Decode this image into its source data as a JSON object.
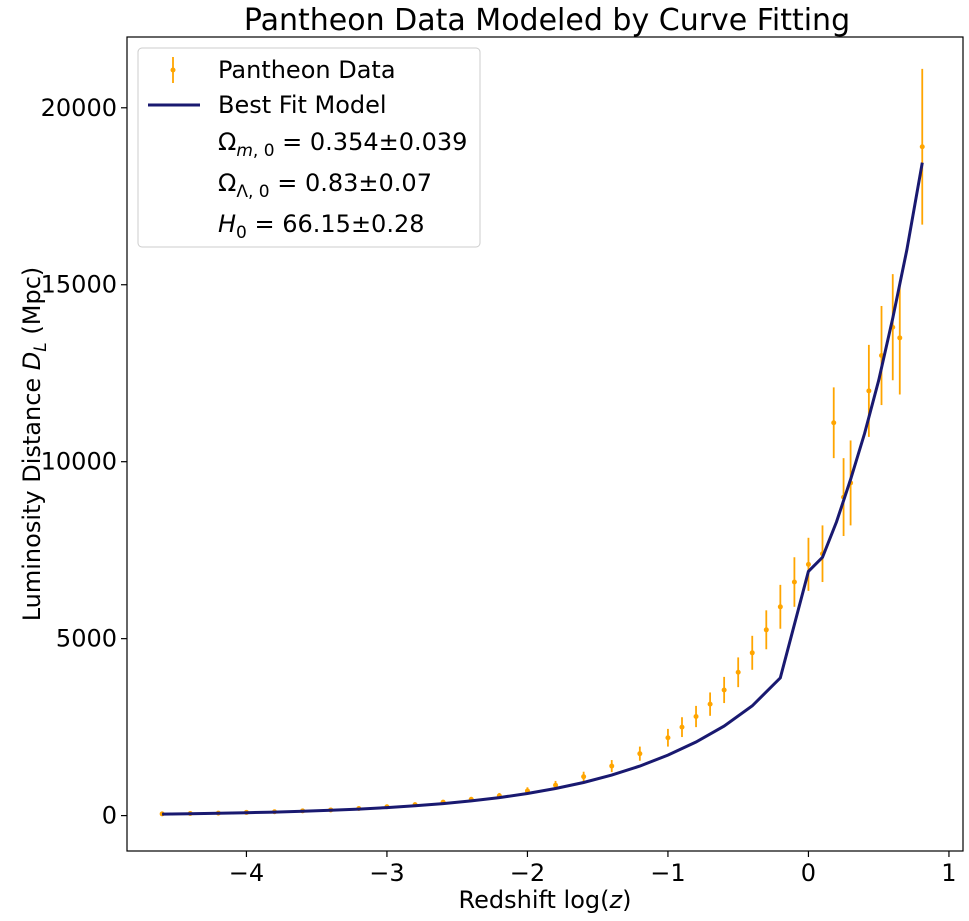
{
  "chart_data": {
    "type": "scatter",
    "title": "Pantheon Data Modeled by Curve Fitting",
    "xlabel": "Redshift log(z)",
    "ylabel": "Luminosity Distance D_L (Mpc)",
    "xlim": [
      -4.85,
      1.1
    ],
    "ylim": [
      -1000,
      22000
    ],
    "xticks": [
      -4,
      -3,
      -2,
      -1,
      0,
      1
    ],
    "xtick_labels": [
      "−4",
      "−3",
      "−2",
      "−1",
      "0",
      "1"
    ],
    "yticks": [
      0,
      5000,
      10000,
      15000,
      20000
    ],
    "ytick_labels": [
      "0",
      "5000",
      "10000",
      "15000",
      "20000"
    ],
    "grid": false,
    "legend": {
      "placement": "top-left",
      "entries": [
        {
          "label": "Pantheon Data",
          "kind": "errorbar"
        },
        {
          "label": "Best Fit Model",
          "kind": "line"
        },
        {
          "label": "Ω_{m,0} = 0.354±0.039",
          "kind": "text"
        },
        {
          "label": "Ω_{Λ,0} = 0.83±0.07",
          "kind": "text"
        },
        {
          "label": "H_0 = 66.15±0.28",
          "kind": "text"
        }
      ]
    },
    "colors": {
      "data": "#ffa500",
      "fit": "#191970"
    },
    "series": [
      {
        "name": "Pantheon Data",
        "style": "errorbar",
        "x": [
          -4.6,
          -4.4,
          -4.2,
          -4.0,
          -3.8,
          -3.6,
          -3.4,
          -3.2,
          -3.0,
          -2.8,
          -2.6,
          -2.4,
          -2.2,
          -2.0,
          -1.8,
          -1.6,
          -1.4,
          -1.2,
          -1.0,
          -0.9,
          -0.8,
          -0.7,
          -0.6,
          -0.5,
          -0.4,
          -0.3,
          -0.2,
          -0.1,
          0.0,
          0.1,
          0.18,
          0.25,
          0.3,
          0.43,
          0.52,
          0.6,
          0.65,
          0.81
        ],
        "y": [
          48,
          60,
          70,
          90,
          110,
          135,
          160,
          200,
          250,
          310,
          380,
          460,
          560,
          700,
          860,
          1100,
          1400,
          1750,
          2200,
          2500,
          2800,
          3150,
          3550,
          4050,
          4600,
          5250,
          5900,
          6600,
          7100,
          7400,
          11100,
          9000,
          9400,
          12000,
          13000,
          13800,
          13500,
          18900
        ],
        "yerr": [
          30,
          30,
          30,
          30,
          30,
          30,
          30,
          40,
          40,
          50,
          60,
          70,
          80,
          100,
          120,
          140,
          170,
          200,
          250,
          280,
          300,
          330,
          370,
          420,
          480,
          550,
          620,
          700,
          750,
          800,
          1000,
          1100,
          1200,
          1300,
          1400,
          1500,
          1600,
          2200
        ]
      },
      {
        "name": "Best Fit Model",
        "style": "line",
        "x": [
          -4.6,
          -4.4,
          -4.2,
          -4.0,
          -3.8,
          -3.6,
          -3.4,
          -3.2,
          -3.0,
          -2.8,
          -2.6,
          -2.4,
          -2.2,
          -2.0,
          -1.8,
          -1.6,
          -1.4,
          -1.2,
          -1.0,
          -0.8,
          -0.6,
          -0.4,
          -0.2,
          0.0,
          0.1,
          0.2,
          0.3,
          0.4,
          0.5,
          0.6,
          0.7,
          0.81
        ],
        "y": [
          44,
          55,
          66,
          82,
          100,
          122,
          150,
          185,
          227,
          278,
          340,
          416,
          510,
          625,
          765,
          935,
          1145,
          1400,
          1710,
          2080,
          2530,
          3100,
          3890,
          6900,
          7300,
          8300,
          9500,
          10800,
          12300,
          14050,
          15980,
          18450
        ]
      }
    ]
  }
}
